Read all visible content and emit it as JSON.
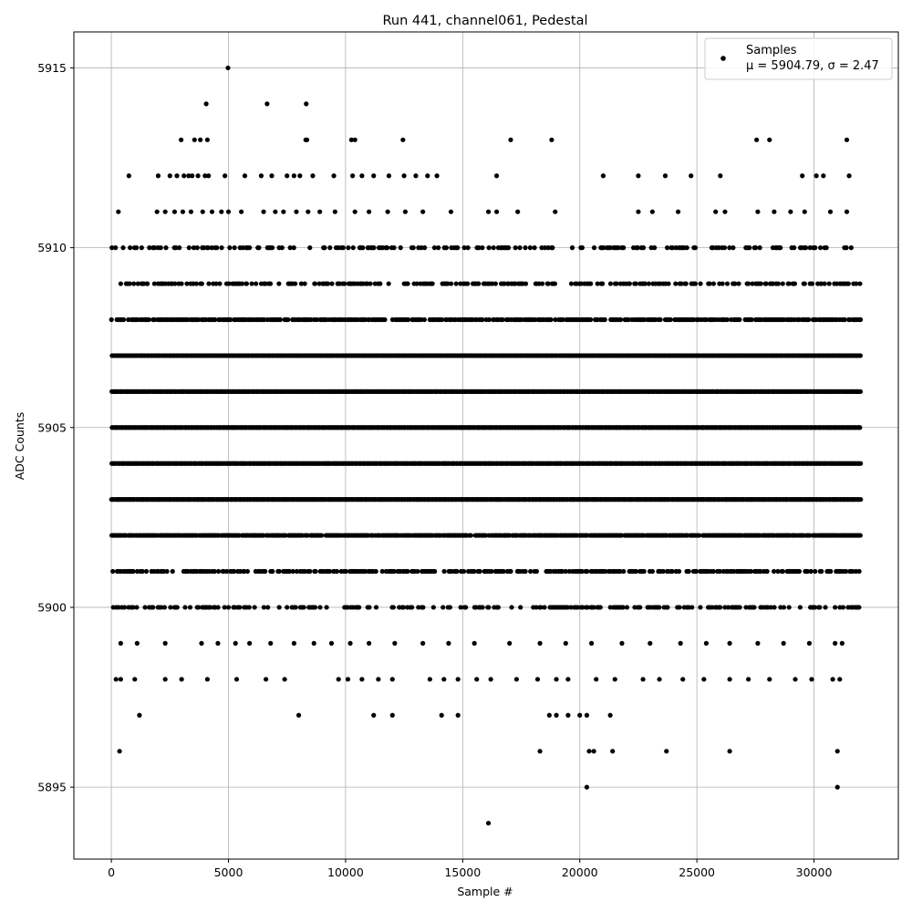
{
  "chart_data": {
    "type": "scatter",
    "title": "Run 441, channel061, Pedestal",
    "xlabel": "Sample #",
    "ylabel": "ADC Counts",
    "xlim": [
      -1600,
      33600
    ],
    "ylim": [
      5893,
      5916
    ],
    "xticks": [
      0,
      5000,
      10000,
      15000,
      20000,
      25000,
      30000
    ],
    "yticks": [
      5895,
      5900,
      5905,
      5910,
      5915
    ],
    "grid": true,
    "legend": {
      "position": "top-right",
      "entries": [
        "Samples",
        "μ = 5904.79, σ = 2.47"
      ]
    },
    "marker_color": "#000000",
    "series": [
      {
        "name": "Samples",
        "mean": 5904.79,
        "sigma": 2.47,
        "sample_count": 32000,
        "dense_levels": [
          5901,
          5902,
          5903,
          5904,
          5905,
          5906,
          5907,
          5908,
          5909
        ],
        "outliers": [
          {
            "x": 4980,
            "y": 5915
          },
          {
            "x": 4050,
            "y": 5914
          },
          {
            "x": 6650,
            "y": 5914
          },
          {
            "x": 8320,
            "y": 5914
          },
          {
            "x": 2980,
            "y": 5913
          },
          {
            "x": 3550,
            "y": 5913
          },
          {
            "x": 3800,
            "y": 5913
          },
          {
            "x": 4100,
            "y": 5913
          },
          {
            "x": 8300,
            "y": 5913
          },
          {
            "x": 8350,
            "y": 5913
          },
          {
            "x": 10250,
            "y": 5913
          },
          {
            "x": 10400,
            "y": 5913
          },
          {
            "x": 12450,
            "y": 5913
          },
          {
            "x": 17050,
            "y": 5913
          },
          {
            "x": 18800,
            "y": 5913
          },
          {
            "x": 27550,
            "y": 5913
          },
          {
            "x": 28100,
            "y": 5913
          },
          {
            "x": 31400,
            "y": 5913
          },
          {
            "x": 750,
            "y": 5912
          },
          {
            "x": 2000,
            "y": 5912
          },
          {
            "x": 2500,
            "y": 5912
          },
          {
            "x": 2800,
            "y": 5912
          },
          {
            "x": 3100,
            "y": 5912
          },
          {
            "x": 3300,
            "y": 5912
          },
          {
            "x": 3450,
            "y": 5912
          },
          {
            "x": 3700,
            "y": 5912
          },
          {
            "x": 4000,
            "y": 5912
          },
          {
            "x": 4150,
            "y": 5912
          },
          {
            "x": 4850,
            "y": 5912
          },
          {
            "x": 5700,
            "y": 5912
          },
          {
            "x": 6400,
            "y": 5912
          },
          {
            "x": 6850,
            "y": 5912
          },
          {
            "x": 7500,
            "y": 5912
          },
          {
            "x": 7800,
            "y": 5912
          },
          {
            "x": 8050,
            "y": 5912
          },
          {
            "x": 8600,
            "y": 5912
          },
          {
            "x": 9500,
            "y": 5912
          },
          {
            "x": 10300,
            "y": 5912
          },
          {
            "x": 10700,
            "y": 5912
          },
          {
            "x": 11200,
            "y": 5912
          },
          {
            "x": 11850,
            "y": 5912
          },
          {
            "x": 12500,
            "y": 5912
          },
          {
            "x": 13000,
            "y": 5912
          },
          {
            "x": 13500,
            "y": 5912
          },
          {
            "x": 13900,
            "y": 5912
          },
          {
            "x": 16450,
            "y": 5912
          },
          {
            "x": 21000,
            "y": 5912
          },
          {
            "x": 22500,
            "y": 5912
          },
          {
            "x": 23650,
            "y": 5912
          },
          {
            "x": 24750,
            "y": 5912
          },
          {
            "x": 26000,
            "y": 5912
          },
          {
            "x": 29500,
            "y": 5912
          },
          {
            "x": 30100,
            "y": 5912
          },
          {
            "x": 30400,
            "y": 5912
          },
          {
            "x": 31500,
            "y": 5912
          },
          {
            "x": 300,
            "y": 5911
          },
          {
            "x": 1950,
            "y": 5911
          },
          {
            "x": 2300,
            "y": 5911
          },
          {
            "x": 2700,
            "y": 5911
          },
          {
            "x": 3050,
            "y": 5911
          },
          {
            "x": 3400,
            "y": 5911
          },
          {
            "x": 3900,
            "y": 5911
          },
          {
            "x": 4300,
            "y": 5911
          },
          {
            "x": 4700,
            "y": 5911
          },
          {
            "x": 5000,
            "y": 5911
          },
          {
            "x": 5550,
            "y": 5911
          },
          {
            "x": 6500,
            "y": 5911
          },
          {
            "x": 7000,
            "y": 5911
          },
          {
            "x": 7350,
            "y": 5911
          },
          {
            "x": 7900,
            "y": 5911
          },
          {
            "x": 8400,
            "y": 5911
          },
          {
            "x": 8900,
            "y": 5911
          },
          {
            "x": 9550,
            "y": 5911
          },
          {
            "x": 10400,
            "y": 5911
          },
          {
            "x": 11000,
            "y": 5911
          },
          {
            "x": 11800,
            "y": 5911
          },
          {
            "x": 12550,
            "y": 5911
          },
          {
            "x": 13300,
            "y": 5911
          },
          {
            "x": 14500,
            "y": 5911
          },
          {
            "x": 16100,
            "y": 5911
          },
          {
            "x": 16450,
            "y": 5911
          },
          {
            "x": 17350,
            "y": 5911
          },
          {
            "x": 18950,
            "y": 5911
          },
          {
            "x": 22500,
            "y": 5911
          },
          {
            "x": 23100,
            "y": 5911
          },
          {
            "x": 24200,
            "y": 5911
          },
          {
            "x": 25800,
            "y": 5911
          },
          {
            "x": 26200,
            "y": 5911
          },
          {
            "x": 27600,
            "y": 5911
          },
          {
            "x": 28300,
            "y": 5911
          },
          {
            "x": 29000,
            "y": 5911
          },
          {
            "x": 29600,
            "y": 5911
          },
          {
            "x": 30700,
            "y": 5911
          },
          {
            "x": 31400,
            "y": 5911
          },
          {
            "x": 400,
            "y": 5899
          },
          {
            "x": 1100,
            "y": 5899
          },
          {
            "x": 2300,
            "y": 5899
          },
          {
            "x": 3850,
            "y": 5899
          },
          {
            "x": 4550,
            "y": 5899
          },
          {
            "x": 5300,
            "y": 5899
          },
          {
            "x": 5900,
            "y": 5899
          },
          {
            "x": 6800,
            "y": 5899
          },
          {
            "x": 7800,
            "y": 5899
          },
          {
            "x": 8650,
            "y": 5899
          },
          {
            "x": 9400,
            "y": 5899
          },
          {
            "x": 10200,
            "y": 5899
          },
          {
            "x": 11000,
            "y": 5899
          },
          {
            "x": 12100,
            "y": 5899
          },
          {
            "x": 13300,
            "y": 5899
          },
          {
            "x": 14400,
            "y": 5899
          },
          {
            "x": 15500,
            "y": 5899
          },
          {
            "x": 17000,
            "y": 5899
          },
          {
            "x": 18300,
            "y": 5899
          },
          {
            "x": 19400,
            "y": 5899
          },
          {
            "x": 20500,
            "y": 5899
          },
          {
            "x": 21800,
            "y": 5899
          },
          {
            "x": 23000,
            "y": 5899
          },
          {
            "x": 24300,
            "y": 5899
          },
          {
            "x": 25400,
            "y": 5899
          },
          {
            "x": 26400,
            "y": 5899
          },
          {
            "x": 27600,
            "y": 5899
          },
          {
            "x": 28700,
            "y": 5899
          },
          {
            "x": 29800,
            "y": 5899
          },
          {
            "x": 30900,
            "y": 5899
          },
          {
            "x": 31200,
            "y": 5899
          },
          {
            "x": 200,
            "y": 5898
          },
          {
            "x": 400,
            "y": 5898
          },
          {
            "x": 1000,
            "y": 5898
          },
          {
            "x": 2300,
            "y": 5898
          },
          {
            "x": 3000,
            "y": 5898
          },
          {
            "x": 4100,
            "y": 5898
          },
          {
            "x": 5350,
            "y": 5898
          },
          {
            "x": 6600,
            "y": 5898
          },
          {
            "x": 7400,
            "y": 5898
          },
          {
            "x": 9700,
            "y": 5898
          },
          {
            "x": 10100,
            "y": 5898
          },
          {
            "x": 10700,
            "y": 5898
          },
          {
            "x": 11400,
            "y": 5898
          },
          {
            "x": 12000,
            "y": 5898
          },
          {
            "x": 13600,
            "y": 5898
          },
          {
            "x": 14200,
            "y": 5898
          },
          {
            "x": 14800,
            "y": 5898
          },
          {
            "x": 15600,
            "y": 5898
          },
          {
            "x": 16200,
            "y": 5898
          },
          {
            "x": 17300,
            "y": 5898
          },
          {
            "x": 18200,
            "y": 5898
          },
          {
            "x": 19000,
            "y": 5898
          },
          {
            "x": 19500,
            "y": 5898
          },
          {
            "x": 20700,
            "y": 5898
          },
          {
            "x": 21500,
            "y": 5898
          },
          {
            "x": 22700,
            "y": 5898
          },
          {
            "x": 23400,
            "y": 5898
          },
          {
            "x": 24400,
            "y": 5898
          },
          {
            "x": 25300,
            "y": 5898
          },
          {
            "x": 26400,
            "y": 5898
          },
          {
            "x": 27200,
            "y": 5898
          },
          {
            "x": 28100,
            "y": 5898
          },
          {
            "x": 29200,
            "y": 5898
          },
          {
            "x": 29900,
            "y": 5898
          },
          {
            "x": 30800,
            "y": 5898
          },
          {
            "x": 31100,
            "y": 5898
          },
          {
            "x": 1200,
            "y": 5897
          },
          {
            "x": 8000,
            "y": 5897
          },
          {
            "x": 11200,
            "y": 5897
          },
          {
            "x": 12000,
            "y": 5897
          },
          {
            "x": 14100,
            "y": 5897
          },
          {
            "x": 14800,
            "y": 5897
          },
          {
            "x": 18700,
            "y": 5897
          },
          {
            "x": 19000,
            "y": 5897
          },
          {
            "x": 19500,
            "y": 5897
          },
          {
            "x": 20000,
            "y": 5897
          },
          {
            "x": 20300,
            "y": 5897
          },
          {
            "x": 21300,
            "y": 5897
          },
          {
            "x": 350,
            "y": 5896
          },
          {
            "x": 18300,
            "y": 5896
          },
          {
            "x": 20400,
            "y": 5896
          },
          {
            "x": 20600,
            "y": 5896
          },
          {
            "x": 21400,
            "y": 5896
          },
          {
            "x": 23700,
            "y": 5896
          },
          {
            "x": 26400,
            "y": 5896
          },
          {
            "x": 31000,
            "y": 5896
          },
          {
            "x": 20300,
            "y": 5895
          },
          {
            "x": 31000,
            "y": 5895
          },
          {
            "x": 16100,
            "y": 5894
          }
        ]
      }
    ]
  }
}
